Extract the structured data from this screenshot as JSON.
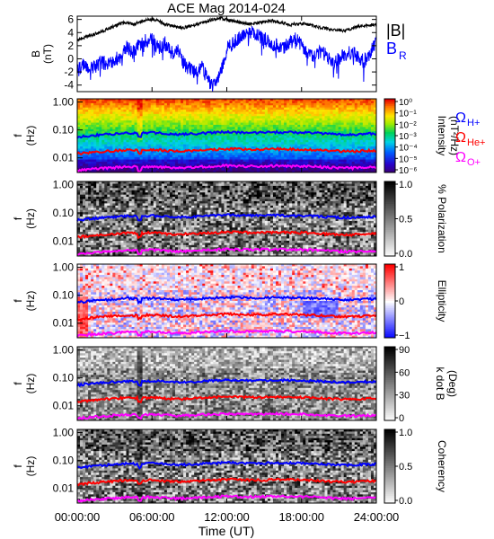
{
  "figure": {
    "title": "ACE Mag 2014-024",
    "xlabel": "Time (UT)",
    "xticks": [
      "00:00:00",
      "06:00:00",
      "12:00:00",
      "18:00:00",
      "24:00:00"
    ]
  },
  "chart_data": [
    {
      "type": "line",
      "panel": "mag",
      "ylabel_main": "B",
      "ylabel_unit": "(nT)",
      "yticks": [
        "6",
        "4",
        "2",
        "0",
        "-2",
        "-4"
      ],
      "ylim": [
        -5,
        6.5
      ],
      "xlim_hours": [
        0,
        24
      ],
      "series": [
        {
          "name": "|B|",
          "color": "#000000",
          "x": [
            0,
            0.5,
            1,
            1.5,
            2,
            2.5,
            3,
            3.5,
            4,
            4.5,
            5,
            5.5,
            6,
            6.5,
            7,
            7.5,
            8,
            8.5,
            9,
            9.5,
            10,
            10.5,
            11,
            11.5,
            12,
            12.5,
            13,
            13.5,
            14,
            14.5,
            15,
            15.5,
            16,
            16.5,
            17,
            17.5,
            18,
            18.5,
            19,
            19.5,
            20,
            20.5,
            21,
            21.5,
            22,
            22.5,
            23,
            23.5,
            24
          ],
          "y": [
            2.8,
            3.2,
            3.5,
            3.8,
            4.2,
            4.6,
            5.0,
            5.4,
            5.6,
            5.3,
            5.5,
            5.9,
            6.0,
            5.8,
            5.3,
            5.0,
            4.9,
            4.7,
            4.9,
            5.2,
            5.5,
            5.8,
            6.1,
            6.2,
            5.9,
            5.8,
            5.6,
            5.4,
            5.3,
            5.5,
            5.6,
            5.8,
            5.7,
            5.5,
            5.2,
            5.3,
            5.4,
            5.2,
            5.0,
            4.8,
            4.6,
            4.5,
            4.4,
            4.3,
            4.6,
            4.9,
            5.0,
            5.1,
            5.2
          ]
        },
        {
          "name": "B",
          "subscript": "R",
          "color": "#0000ff",
          "x": [
            0,
            0.5,
            1,
            1.5,
            2,
            2.5,
            3,
            3.5,
            4,
            4.5,
            5,
            5.5,
            6,
            6.5,
            7,
            7.5,
            8,
            8.5,
            9,
            9.5,
            10,
            10.5,
            11,
            11.5,
            12,
            12.5,
            13,
            13.5,
            14,
            14.5,
            15,
            15.5,
            16,
            16.5,
            17,
            17.5,
            18,
            18.5,
            19,
            19.5,
            20,
            20.5,
            21,
            21.5,
            22,
            22.5,
            23,
            23.5,
            24
          ],
          "y": [
            -2.0,
            -0.8,
            -1.5,
            -1.0,
            -0.5,
            -0.8,
            -0.3,
            0.5,
            1.8,
            1.0,
            2.2,
            2.8,
            3.2,
            1.5,
            2.5,
            0.8,
            1.5,
            -0.5,
            -1.5,
            -2.0,
            -1.0,
            -3.5,
            -4.2,
            -2.0,
            1.5,
            2.5,
            3.2,
            3.8,
            4.0,
            3.5,
            3.0,
            2.5,
            2.0,
            1.5,
            2.5,
            3.0,
            2.0,
            1.0,
            0.5,
            1.2,
            0.5,
            -1.0,
            0.0,
            0.8,
            1.0,
            0.5,
            -0.5,
            1.0,
            2.5
          ]
        }
      ]
    },
    {
      "type": "heatmap",
      "panel": "intensity",
      "ylabel_main": "f",
      "ylabel_unit": "(Hz)",
      "yticks": [
        "1.00",
        "0.10",
        "0.01"
      ],
      "colorbar": {
        "label": "Intensity",
        "unit": "(nT²/Hz)",
        "colormap": "rainbow",
        "ticks": [
          "10⁰",
          "10⁻¹",
          "10⁻²",
          "10⁻³",
          "10⁻⁴",
          "10⁻⁵",
          "10⁻⁶"
        ]
      },
      "legend": [
        {
          "text": "Ω",
          "sub": "H+",
          "color": "#0000ff"
        },
        {
          "text": "Ω",
          "sub": "He+",
          "color": "#ff0000"
        },
        {
          "text": "Ω",
          "sub": "O+",
          "color": "#ff00ff"
        }
      ]
    },
    {
      "type": "heatmap",
      "panel": "polarization",
      "ylabel_main": "f",
      "ylabel_unit": "(Hz)",
      "yticks": [
        "1.00",
        "0.10",
        "0.01"
      ],
      "colorbar": {
        "label": "% Polarization",
        "colormap": "gray",
        "ticks": [
          "1.0",
          "0.5",
          "0.0"
        ]
      }
    },
    {
      "type": "heatmap",
      "panel": "ellipticity",
      "ylabel_main": "f",
      "ylabel_unit": "(Hz)",
      "yticks": [
        "1.00",
        "0.10",
        "0.01"
      ],
      "colorbar": {
        "label": "Ellipticity",
        "colormap": "bwr",
        "ticks": [
          "1",
          "0",
          "−1"
        ]
      }
    },
    {
      "type": "heatmap",
      "panel": "kdotb",
      "ylabel_main": "f",
      "ylabel_unit": "(Hz)",
      "yticks": [
        "1.00",
        "0.10",
        "0.01"
      ],
      "colorbar": {
        "label": "k dot B",
        "unit": "(Deg)",
        "colormap": "gray_r",
        "ticks": [
          "90",
          "60",
          "30",
          "0"
        ]
      }
    },
    {
      "type": "heatmap",
      "panel": "coherency",
      "ylabel_main": "f",
      "ylabel_unit": "(Hz)",
      "yticks": [
        "1.00",
        "0.10",
        "0.01"
      ],
      "colorbar": {
        "label": "Coherency",
        "colormap": "gray",
        "ticks": [
          "1.0",
          "0.5",
          "0.0"
        ]
      }
    }
  ],
  "gyrofrequency_lines": {
    "x_hours": [
      0,
      1,
      2,
      3,
      4,
      5,
      6,
      7,
      8,
      9,
      10,
      11,
      12,
      13,
      14,
      15,
      16,
      17,
      18,
      19,
      20,
      21,
      22,
      23,
      24
    ],
    "H+": [
      0.055,
      0.062,
      0.068,
      0.072,
      0.078,
      0.075,
      0.08,
      0.074,
      0.07,
      0.072,
      0.076,
      0.08,
      0.085,
      0.082,
      0.08,
      0.081,
      0.083,
      0.082,
      0.08,
      0.078,
      0.073,
      0.07,
      0.068,
      0.072,
      0.074
    ],
    "He+": [
      0.014,
      0.0155,
      0.017,
      0.018,
      0.0195,
      0.019,
      0.02,
      0.0185,
      0.0175,
      0.018,
      0.019,
      0.02,
      0.021,
      0.0205,
      0.02,
      0.02,
      0.021,
      0.0205,
      0.02,
      0.0195,
      0.018,
      0.0175,
      0.017,
      0.018,
      0.0185
    ],
    "O+": [
      0.0035,
      0.0039,
      0.0042,
      0.0045,
      0.0049,
      0.0047,
      0.005,
      0.0046,
      0.0044,
      0.0045,
      0.0048,
      0.005,
      0.0053,
      0.0051,
      0.005,
      0.0051,
      0.0052,
      0.0051,
      0.005,
      0.0049,
      0.0046,
      0.0044,
      0.0043,
      0.0045,
      0.0046
    ]
  },
  "colors": {
    "blue": "#0000ff",
    "red": "#ff0000",
    "magenta": "#ff00ff",
    "black": "#000000"
  }
}
